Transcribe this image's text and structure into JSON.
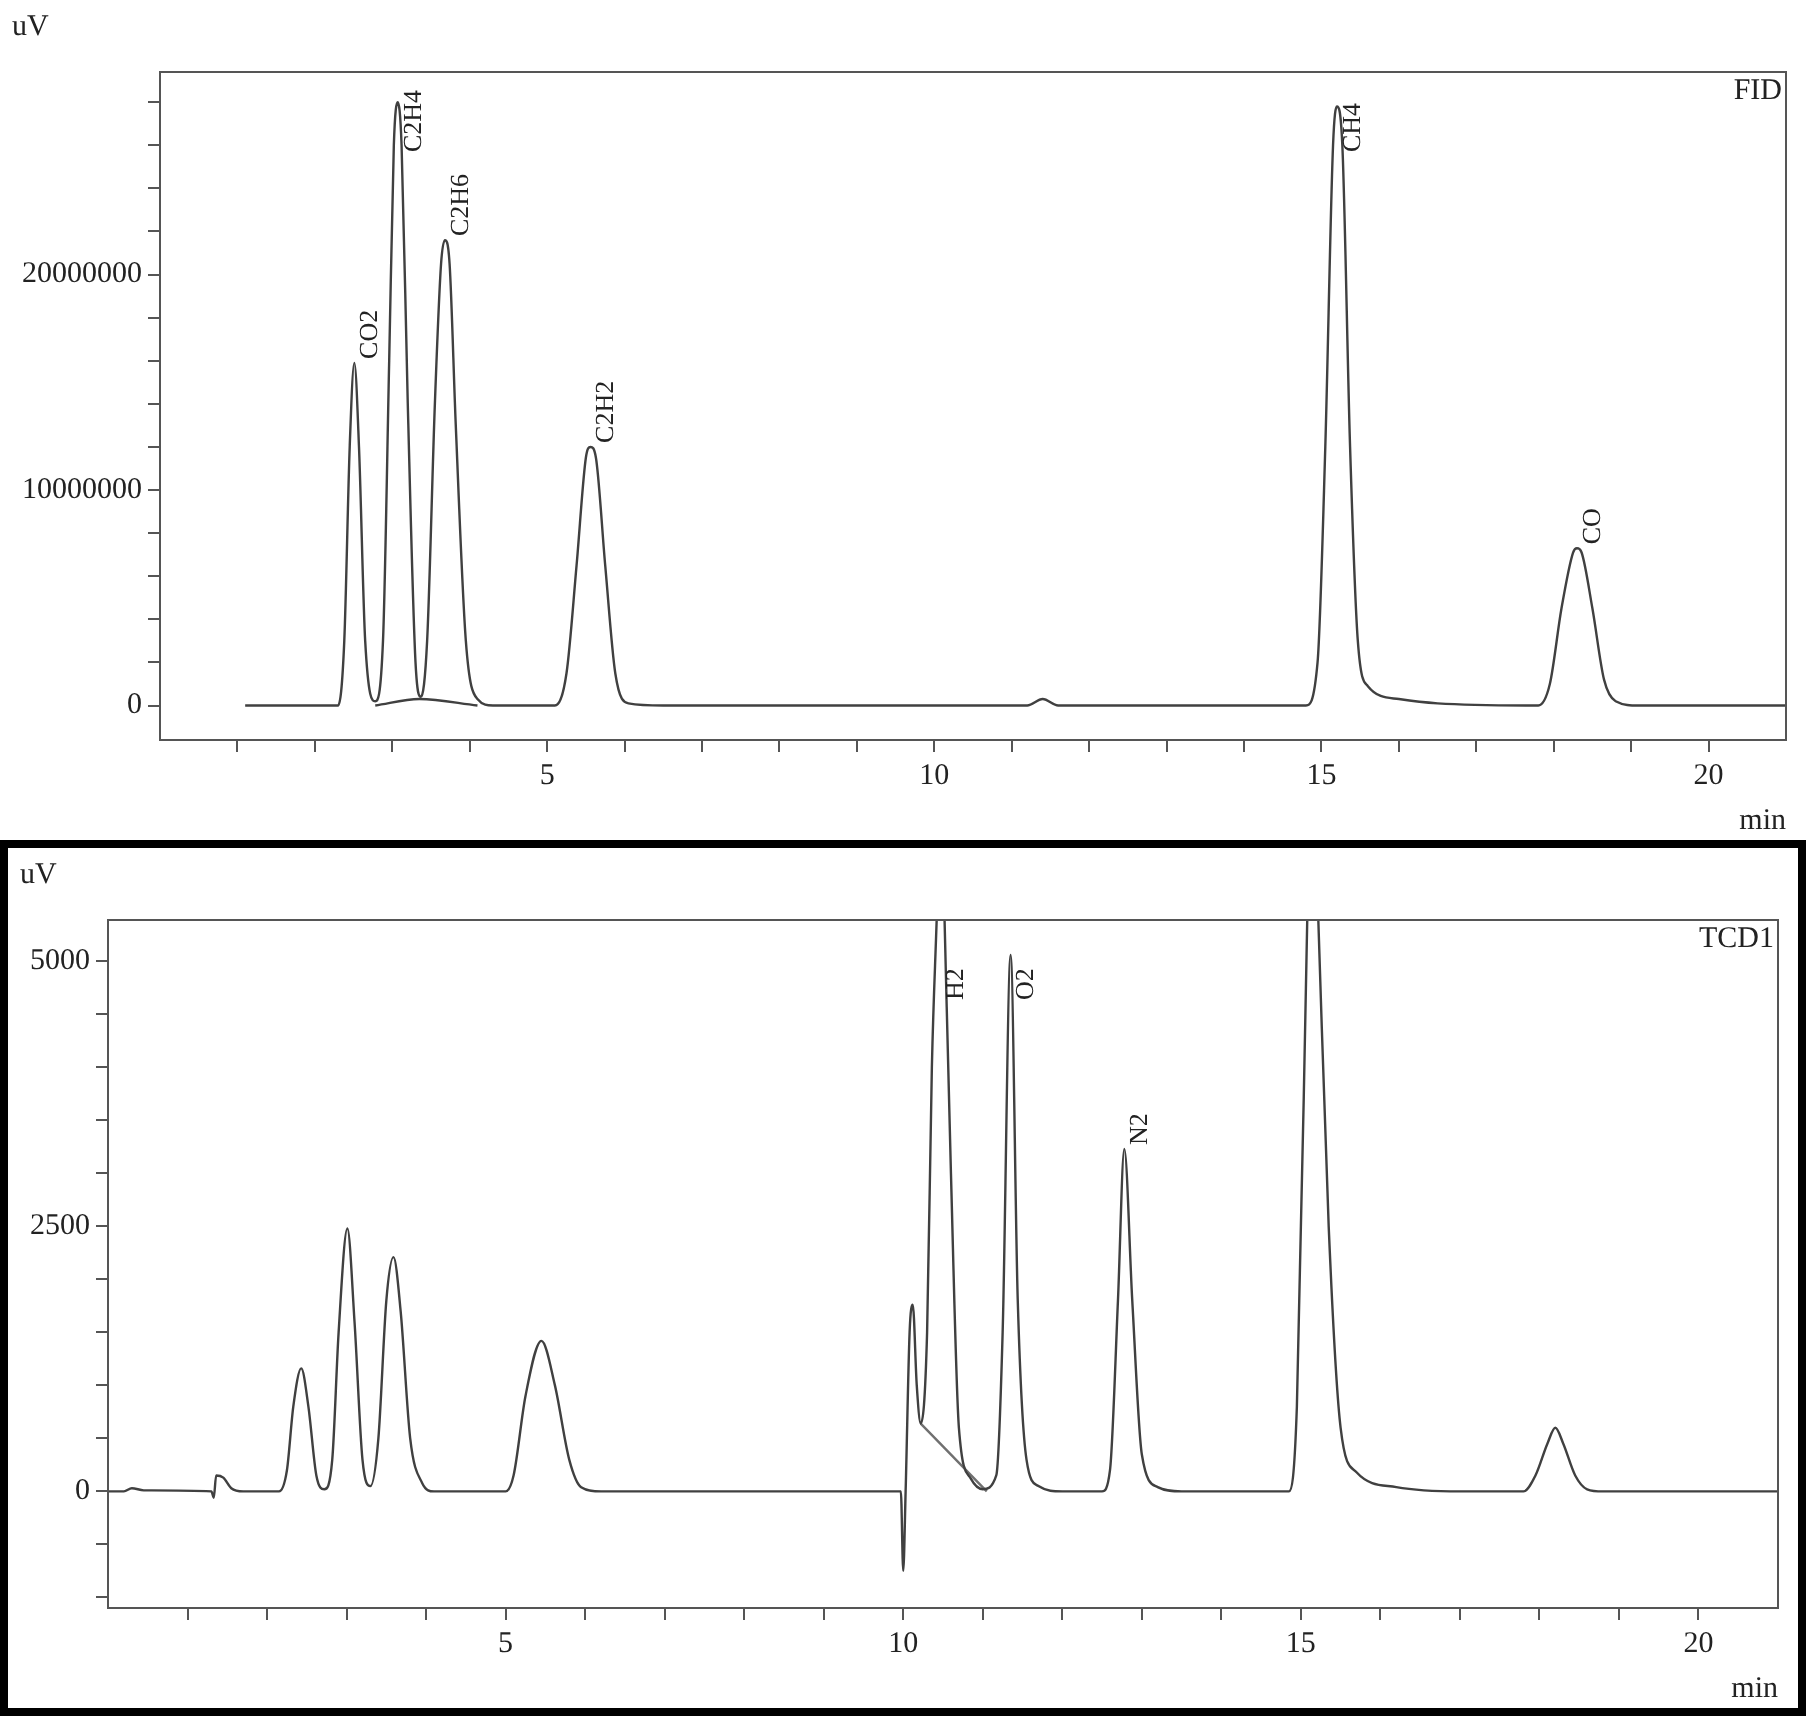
{
  "chart_data": [
    {
      "type": "line",
      "title": "FID",
      "xlabel": "min",
      "ylabel": "uV",
      "marker": "none",
      "grid": false,
      "xlim": [
        0,
        21
      ],
      "ylim": [
        -1600000,
        29400000
      ],
      "xticks": [
        {
          "value": 1,
          "label": null
        },
        {
          "value": 2,
          "label": null
        },
        {
          "value": 3,
          "label": null
        },
        {
          "value": 4,
          "label": null
        },
        5,
        {
          "value": 6,
          "label": null
        },
        {
          "value": 7,
          "label": null
        },
        {
          "value": 8,
          "label": null
        },
        {
          "value": 9,
          "label": null
        },
        10,
        {
          "value": 11,
          "label": null
        },
        {
          "value": 12,
          "label": null
        },
        {
          "value": 13,
          "label": null
        },
        {
          "value": 14,
          "label": null
        },
        15,
        {
          "value": 16,
          "label": null
        },
        {
          "value": 17,
          "label": null
        },
        {
          "value": 18,
          "label": null
        },
        {
          "value": 19,
          "label": null
        },
        20
      ],
      "yticks": [
        0,
        {
          "value": 2000000,
          "label": null
        },
        {
          "value": 4000000,
          "label": null
        },
        {
          "value": 6000000,
          "label": null
        },
        {
          "value": 8000000,
          "label": null
        },
        10000000,
        {
          "value": 12000000,
          "label": null
        },
        {
          "value": 14000000,
          "label": null
        },
        {
          "value": 16000000,
          "label": null
        },
        {
          "value": 18000000,
          "label": null
        },
        20000000,
        {
          "value": 22000000,
          "label": null
        },
        {
          "value": 24000000,
          "label": null
        },
        {
          "value": 26000000,
          "label": null
        },
        {
          "value": 28000000,
          "label": null
        }
      ],
      "series": [
        {
          "color": "#404040",
          "x": [
            1.1,
            1.8,
            2.3,
            2.38,
            2.45,
            2.51,
            2.57,
            2.65,
            2.78,
            2.88,
            2.96,
            3.02,
            3.07,
            3.12,
            3.2,
            3.3,
            3.37,
            3.45,
            3.55,
            3.63,
            3.68,
            3.74,
            3.82,
            3.95,
            4.1,
            4.3,
            5.1,
            5.25,
            5.38,
            5.5,
            5.56,
            5.63,
            5.75,
            5.88,
            6.05,
            6.5,
            11.2,
            11.4,
            11.6,
            14.8,
            14.95,
            15.05,
            15.15,
            15.2,
            15.27,
            15.37,
            15.47,
            15.6,
            16,
            16.5,
            17.8,
            17.95,
            18.1,
            18.25,
            18.3,
            18.36,
            18.5,
            18.65,
            18.8,
            19.1,
            21
          ],
          "values": [
            0,
            0,
            0,
            3000000,
            12000000,
            15900000,
            12000000,
            3000000,
            200000,
            3000000,
            16000000,
            26000000,
            28000000,
            26000000,
            14000000,
            2000000,
            400000,
            3000000,
            14000000,
            20500000,
            21600000,
            20500000,
            13000000,
            3000000,
            300000,
            0,
            0,
            1500000,
            6500000,
            11500000,
            12000000,
            11500000,
            6500000,
            1500000,
            100000,
            0,
            0,
            300000,
            0,
            0,
            2000000,
            12000000,
            26000000,
            27800000,
            26000000,
            12000000,
            3000000,
            900000,
            300000,
            100000,
            0,
            1000000,
            4500000,
            7100000,
            7300000,
            7100000,
            4500000,
            1200000,
            200000,
            0,
            0
          ]
        },
        {
          "color": "#404040",
          "x": [
            2.78,
            3.35,
            4.1
          ],
          "values": [
            0,
            300000,
            0
          ]
        }
      ],
      "annotations": [
        {
          "text": "CO2",
          "x": 2.51,
          "y": 15900000
        },
        {
          "text": "C2H4",
          "x": 3.07,
          "y": 28000000
        },
        {
          "text": "C2H6",
          "x": 3.68,
          "y": 21600000
        },
        {
          "text": "C2H2",
          "x": 5.56,
          "y": 12000000
        },
        {
          "text": "CH4",
          "x": 15.2,
          "y": 27800000
        },
        {
          "text": "CO",
          "x": 18.3,
          "y": 7300000
        }
      ]
    },
    {
      "type": "line",
      "title": "TCD1",
      "xlabel": "min",
      "ylabel": "uV",
      "marker": "none",
      "grid": false,
      "xlim": [
        0,
        21
      ],
      "ylim": [
        -1100,
        5390
      ],
      "xticks": [
        {
          "value": 1,
          "label": null
        },
        {
          "value": 2,
          "label": null
        },
        {
          "value": 3,
          "label": null
        },
        {
          "value": 4,
          "label": null
        },
        5,
        {
          "value": 6,
          "label": null
        },
        {
          "value": 7,
          "label": null
        },
        {
          "value": 8,
          "label": null
        },
        {
          "value": 9,
          "label": null
        },
        10,
        {
          "value": 11,
          "label": null
        },
        {
          "value": 12,
          "label": null
        },
        {
          "value": 13,
          "label": null
        },
        {
          "value": 14,
          "label": null
        },
        15,
        {
          "value": 16,
          "label": null
        },
        {
          "value": 17,
          "label": null
        },
        {
          "value": 18,
          "label": null
        },
        {
          "value": 19,
          "label": null
        },
        20
      ],
      "yticks": [
        {
          "value": -1000,
          "label": null
        },
        {
          "value": -500,
          "label": null
        },
        0,
        {
          "value": 500,
          "label": null
        },
        {
          "value": 1000,
          "label": null
        },
        {
          "value": 1500,
          "label": null
        },
        {
          "value": 2000,
          "label": null
        },
        2500,
        {
          "value": 3000,
          "label": null
        },
        {
          "value": 3500,
          "label": null
        },
        {
          "value": 4000,
          "label": null
        },
        {
          "value": 4500,
          "label": null
        },
        5000
      ],
      "series": [
        {
          "color": "#404040",
          "x": [
            0,
            0.2,
            0.3,
            0.45,
            1.3,
            1.33,
            1.36,
            1.45,
            1.55,
            1.7,
            2.15,
            2.25,
            2.33,
            2.43,
            2.52,
            2.62,
            2.72,
            2.82,
            2.9,
            3.01,
            3.1,
            3.2,
            3.3,
            3.4,
            3.5,
            3.59,
            3.68,
            3.8,
            3.95,
            4.1,
            5.0,
            5.1,
            5.25,
            5.45,
            5.62,
            5.8,
            5.95,
            6.2,
            9.97,
            10.0,
            10.03,
            10.08,
            10.12,
            10.17,
            10.22,
            10.3,
            10.36,
            10.42,
            10.46,
            10.52,
            10.6,
            10.7,
            10.85,
            11.0,
            11.17,
            11.25,
            11.35,
            11.44,
            11.55,
            11.7,
            12.0,
            12.5,
            12.6,
            12.7,
            12.78,
            12.88,
            13.0,
            13.2,
            13.5,
            14.85,
            14.95,
            15.08,
            15.15,
            15.22,
            15.35,
            15.5,
            15.7,
            16.2,
            17,
            17.8,
            17.95,
            18.1,
            18.2,
            18.3,
            18.45,
            18.6,
            18.8,
            21
          ],
          "values": [
            0,
            0,
            30,
            10,
            0,
            -60,
            150,
            130,
            30,
            0,
            0,
            200,
            800,
            1160,
            800,
            150,
            20,
            300,
            1500,
            2480,
            1600,
            300,
            50,
            500,
            1800,
            2210,
            1700,
            500,
            80,
            0,
            0,
            150,
            900,
            1420,
            1000,
            300,
            40,
            0,
            0,
            -750,
            0,
            1500,
            1760,
            1000,
            640,
            1500,
            4000,
            5380,
            null,
            5380,
            3000,
            600,
            120,
            20,
            150,
            1500,
            5060,
            1800,
            300,
            50,
            0,
            0,
            200,
            1800,
            3230,
            1800,
            350,
            40,
            0,
            0,
            800,
            5380,
            null,
            5380,
            2500,
            600,
            180,
            40,
            0,
            0,
            150,
            450,
            600,
            450,
            150,
            20,
            0,
            0
          ]
        },
        {
          "color": "#707070",
          "x": [
            10.22,
            11.05
          ],
          "values": [
            640,
            0
          ]
        }
      ],
      "annotations": [
        {
          "text": "H2",
          "x": 10.46,
          "y": 5380
        },
        {
          "text": "O2",
          "x": 11.35,
          "y": 5060
        },
        {
          "text": "N2",
          "x": 12.78,
          "y": 3230
        }
      ]
    }
  ]
}
